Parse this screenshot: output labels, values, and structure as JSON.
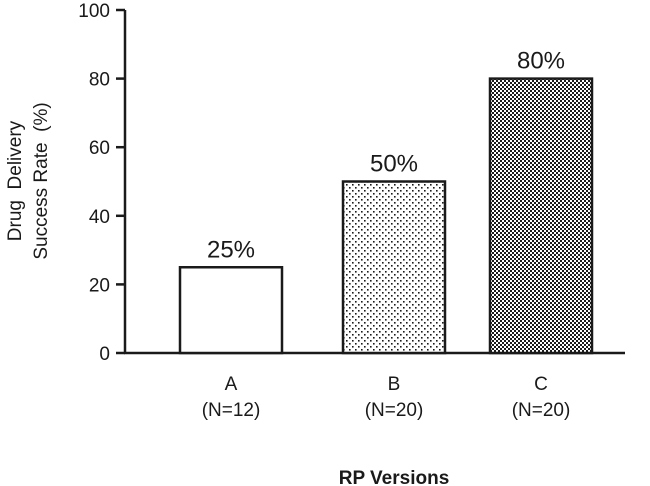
{
  "chart_data": {
    "type": "bar",
    "categories": [
      "A",
      "B",
      "C"
    ],
    "category_sublabels": [
      "(N=12)",
      "(N=20)",
      "(N=20)"
    ],
    "values": [
      25,
      50,
      80
    ],
    "data_labels": [
      "25%",
      "50%",
      "80%"
    ],
    "fills": [
      "white",
      "dots",
      "checker"
    ],
    "xlabel": "RP Versions",
    "ylabel_lines": [
      "Drug  Delivery",
      "Success Rate  (%)"
    ],
    "ylim": [
      0,
      100
    ],
    "yticks": [
      0,
      20,
      40,
      60,
      80,
      100
    ],
    "ytick_labels": [
      "0",
      "20",
      "40",
      "60",
      "80",
      "100"
    ],
    "grid": false,
    "colors": {
      "ink": "#1a1a1a",
      "background": "#ffffff"
    }
  }
}
